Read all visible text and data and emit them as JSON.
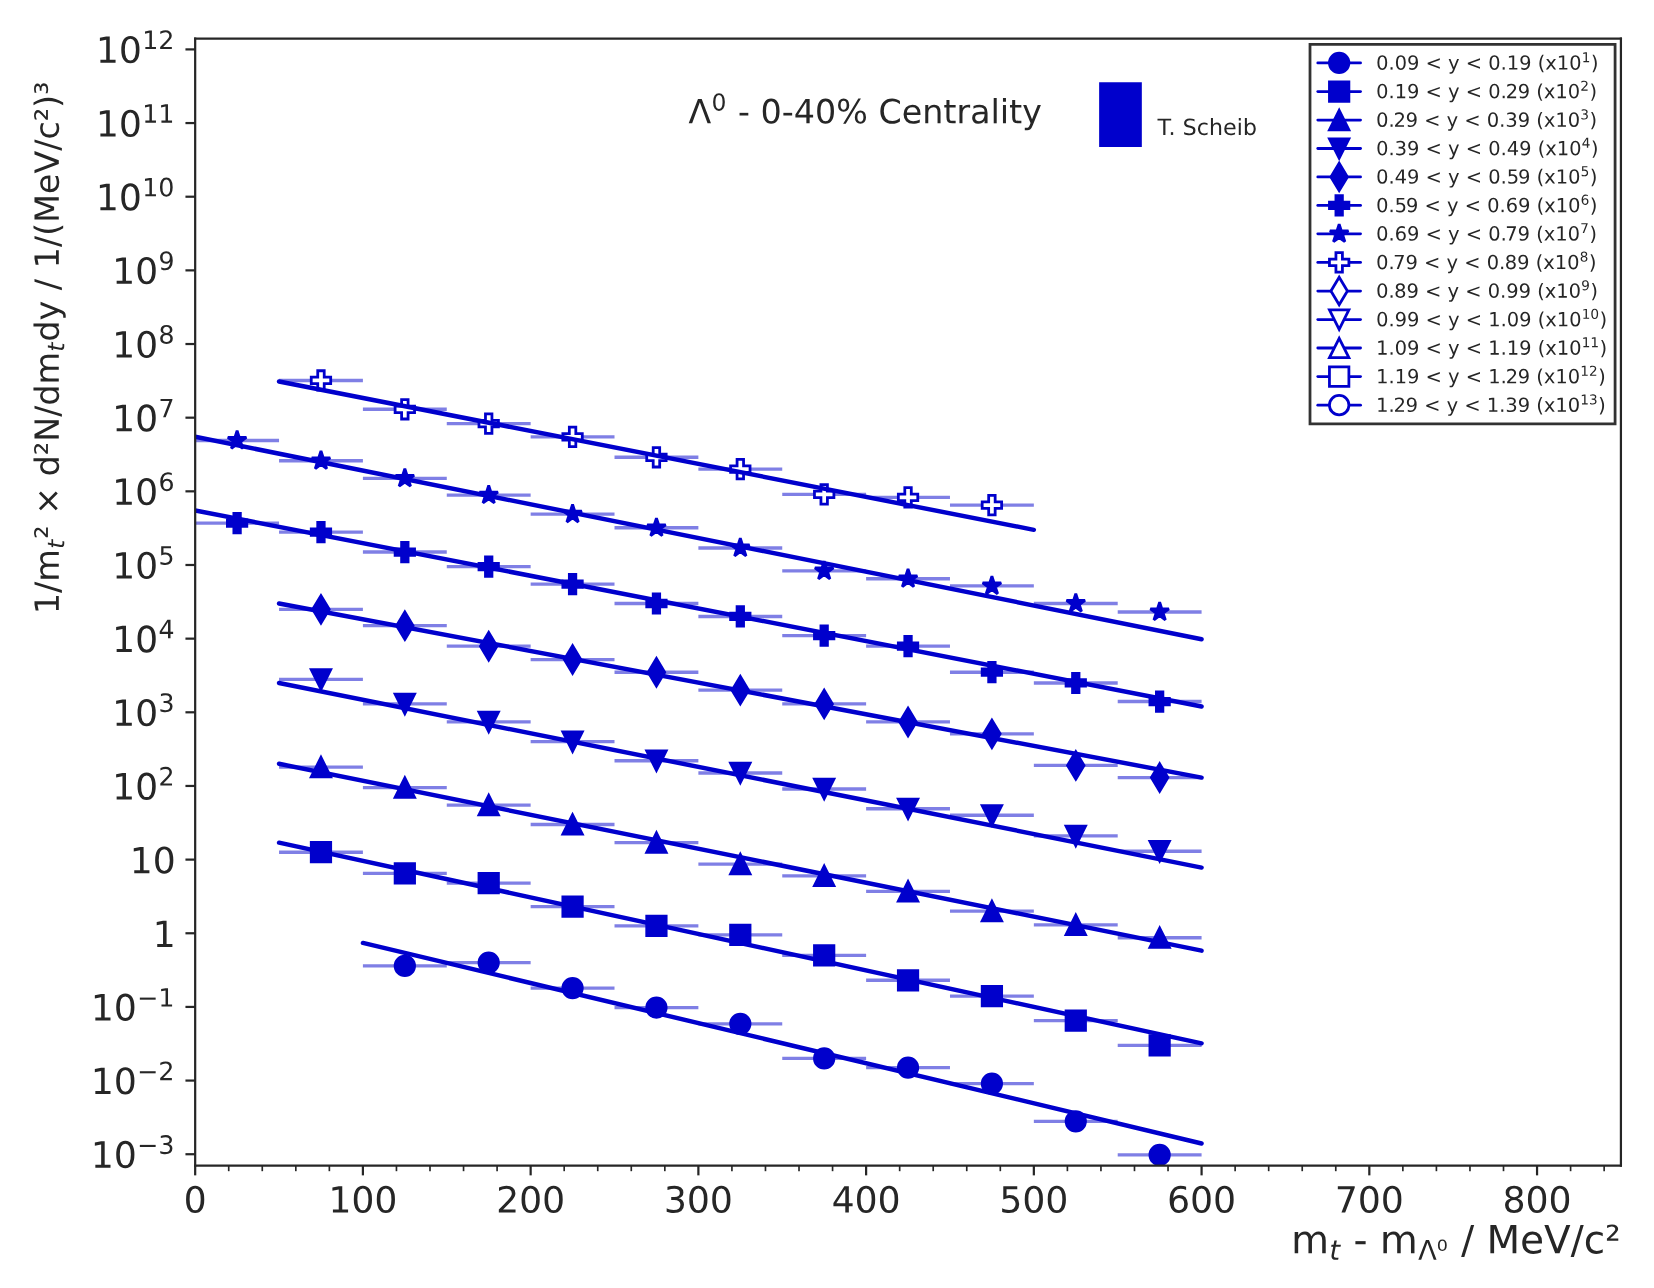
{
  "chart_data": {
    "type": "scatter",
    "title": "Λ$^{0}$ - 0-40% Centrality",
    "xlabel": "m$_{t}$ - m$_{Λ⁰}$ / MeV/c²",
    "ylabel": "1/m$_{t}$² × d²N/dm$_{t}$dy / 1/(MeV/c²)³",
    "annotations": [
      "T. Scheib"
    ],
    "xlim": [
      0,
      850
    ],
    "xticks": [
      0,
      100,
      200,
      300,
      400,
      500,
      600,
      700,
      800
    ],
    "log": "y",
    "ylim": [
      0.0007,
      1400000000000
    ],
    "yticks": [
      {
        "value": 0.001,
        "label": "10$^{−3}$"
      },
      {
        "value": 0.01,
        "label": "10$^{−2}$"
      },
      {
        "value": 0.1,
        "label": "10$^{−1}$"
      },
      {
        "value": 1,
        "label": "1"
      },
      {
        "value": 10,
        "label": "10"
      },
      {
        "value": 100,
        "label": "10$^{2}$"
      },
      {
        "value": 1000,
        "label": "10$^{3}$"
      },
      {
        "value": 10000,
        "label": "10$^{4}$"
      },
      {
        "value": 100000,
        "label": "10$^{5}$"
      },
      {
        "value": 1000000,
        "label": "10$^{6}$"
      },
      {
        "value": 10000000,
        "label": "10$^{7}$"
      },
      {
        "value": 100000000,
        "label": "10$^{8}$"
      },
      {
        "value": 1000000000,
        "label": "10$^{9}$"
      },
      {
        "value": 10000000000,
        "label": "10$^{10}$"
      },
      {
        "value": 100000000000,
        "label": "10$^{11}$"
      },
      {
        "value": 1000000000000,
        "label": "10$^{12}$"
      }
    ],
    "grid": false,
    "legend": "top right",
    "series": [
      {
        "name": "0.09 < y < 0.19 (x10$^{1}$)",
        "color": "#0000cc",
        "marker": "circle",
        "x": [
          125,
          175,
          225,
          275,
          325,
          375,
          425,
          475,
          525,
          575
        ],
        "values": [
          0.36,
          0.4,
          0.18,
          0.098,
          0.059,
          0.02,
          0.015,
          0.0091,
          0.0028,
          0.00098
        ],
        "xerrors": [
          25,
          25,
          25,
          25,
          25,
          25,
          25,
          25,
          25,
          25
        ]
      },
      {
        "name": "0.19 < y < 0.29 (x10$^{2}$)",
        "color": "#0000cc",
        "marker": "square",
        "x": [
          75,
          125,
          175,
          225,
          275,
          325,
          375,
          425,
          475,
          525,
          575
        ],
        "values": [
          12.6,
          6.5,
          4.8,
          2.3,
          1.26,
          0.95,
          0.5,
          0.23,
          0.14,
          0.065,
          0.03
        ],
        "xerrors": [
          25,
          25,
          25,
          25,
          25,
          25,
          25,
          25,
          25,
          25,
          25
        ]
      },
      {
        "name": "0.29 < y < 0.39 (x10$^{3}$)",
        "color": "#0000cc",
        "marker": "triangle",
        "x": [
          75,
          125,
          175,
          225,
          275,
          325,
          375,
          425,
          475,
          525,
          575
        ],
        "values": [
          180,
          95,
          55,
          30,
          17,
          8.7,
          6.0,
          3.7,
          2.0,
          1.3,
          0.87
        ],
        "xerrors": [
          25,
          25,
          25,
          25,
          25,
          25,
          25,
          25,
          25,
          25,
          25
        ]
      },
      {
        "name": "0.39 < y < 0.49 (x10$^{4}$)",
        "color": "#0000cc",
        "marker": "triangle_down",
        "x": [
          75,
          125,
          175,
          225,
          275,
          325,
          375,
          425,
          475,
          525,
          575
        ],
        "values": [
          2800,
          1300,
          740,
          400,
          220,
          150,
          91,
          49,
          40,
          21,
          13
        ],
        "xerrors": [
          25,
          25,
          25,
          25,
          25,
          25,
          25,
          25,
          25,
          25,
          25
        ]
      },
      {
        "name": "0.49 < y < 0.59 (x10$^{5}$)",
        "color": "#0000cc",
        "marker": "diamond",
        "x": [
          75,
          125,
          175,
          225,
          275,
          325,
          375,
          425,
          475,
          525,
          575
        ],
        "values": [
          25000,
          15000,
          7900,
          5200,
          3500,
          2000,
          1300,
          740,
          510,
          190,
          130
        ],
        "xerrors": [
          25,
          25,
          25,
          25,
          25,
          25,
          25,
          25,
          25,
          25,
          25
        ]
      },
      {
        "name": "0.59 < y < 0.69 (x10$^{6}$)",
        "color": "#0000cc",
        "marker": "cross",
        "x": [
          25,
          75,
          125,
          175,
          225,
          275,
          325,
          375,
          425,
          475,
          525,
          575
        ],
        "values": [
          370000,
          280000,
          150000,
          95000,
          55000,
          30000,
          20000,
          11000,
          7900,
          3500,
          2500,
          1400
        ],
        "xerrors": [
          25,
          25,
          25,
          25,
          25,
          25,
          25,
          25,
          25,
          25,
          25,
          25
        ]
      },
      {
        "name": "0.69 < y < 0.79 (x10$^{7}$)",
        "color": "#0000cc",
        "marker": "star",
        "x": [
          25,
          75,
          125,
          175,
          225,
          275,
          325,
          375,
          425,
          475,
          525,
          575
        ],
        "values": [
          4900000,
          2600000,
          1500000,
          890000,
          490000,
          320000,
          170000,
          83000,
          65000,
          52000,
          30000,
          23000
        ],
        "xerrors": [
          25,
          25,
          25,
          25,
          25,
          25,
          25,
          25,
          25,
          25,
          25,
          25
        ]
      },
      {
        "name": "0.79 < y < 0.89 (x10$^{8}$)",
        "color": "#0000cc",
        "marker": "cross_open",
        "x": [
          75,
          125,
          175,
          225,
          275,
          325,
          375,
          425,
          475
        ],
        "values": [
          32000000,
          13000000,
          8300000,
          5500000,
          2900000,
          2000000,
          910000,
          830000,
          650000
        ],
        "xerrors": [
          25,
          25,
          25,
          25,
          25,
          25,
          25,
          25,
          25
        ]
      },
      {
        "name": "0.89 < y < 0.99 (x10$^{9}$)",
        "color": "#0000cc",
        "marker": "diamond_open"
      },
      {
        "name": "0.99 < y < 1.09 (x10$^{10}$)",
        "color": "#0000cc",
        "marker": "triangle_down_open"
      },
      {
        "name": "1.09 < y < 1.19 (x10$^{11}$)",
        "color": "#0000cc",
        "marker": "triangle_open"
      },
      {
        "name": "1.19 < y < 1.29 (x10$^{12}$)",
        "color": "#0000cc",
        "marker": "square_open"
      },
      {
        "name": "1.29 < y < 1.39 (x10$^{13}$)",
        "color": "#0000cc",
        "marker": "circle_open"
      },
      {
        "type": "line",
        "color": "#0000cc",
        "x": [
          100,
          600
        ],
        "values": [
          0.74,
          0.0014
        ]
      },
      {
        "type": "line",
        "color": "#0000cc",
        "x": [
          50,
          600
        ],
        "values": [
          17,
          0.032
        ]
      },
      {
        "type": "line",
        "color": "#0000cc",
        "x": [
          50,
          600
        ],
        "values": [
          200,
          0.58
        ]
      },
      {
        "type": "line",
        "color": "#0000cc",
        "x": [
          50,
          600
        ],
        "values": [
          2500,
          7.8
        ]
      },
      {
        "type": "line",
        "color": "#0000cc",
        "x": [
          50,
          600
        ],
        "values": [
          30000,
          130
        ]
      },
      {
        "type": "line",
        "color": "#0000cc",
        "x": [
          0,
          600
        ],
        "values": [
          550000,
          1200
        ]
      },
      {
        "type": "line",
        "color": "#0000cc",
        "x": [
          0,
          600
        ],
        "values": [
          5500000,
          9800
        ]
      },
      {
        "type": "line",
        "color": "#0000cc",
        "x": [
          50,
          500
        ],
        "values": [
          31000000,
          300000
        ]
      }
    ]
  }
}
